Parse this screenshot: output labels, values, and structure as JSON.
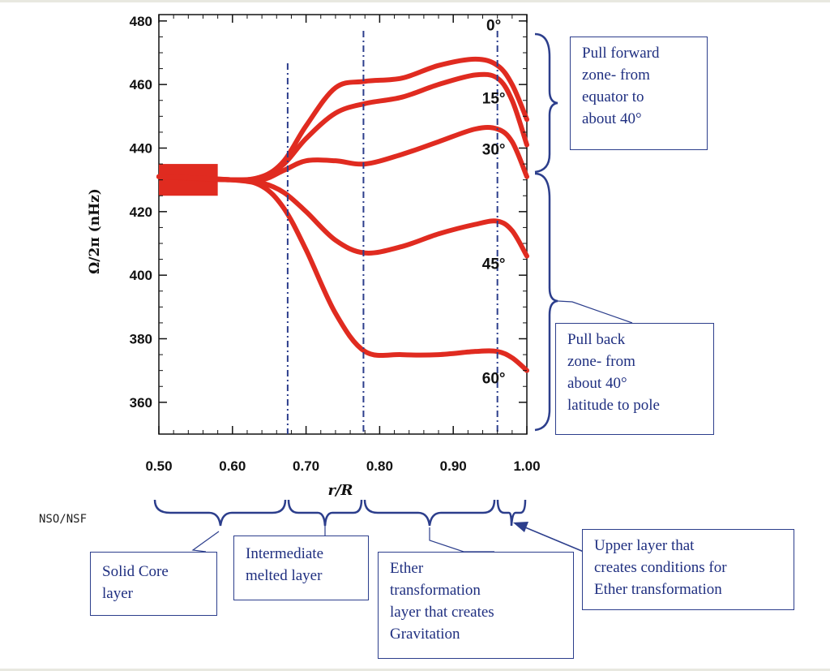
{
  "chart_data": {
    "type": "line",
    "xlabel": "r/R",
    "ylabel": "Ω/2π (nHz)",
    "xlim": [
      0.5,
      1.0
    ],
    "ylim": [
      350,
      482
    ],
    "x_ticks": [
      0.5,
      0.6,
      0.7,
      0.8,
      0.9,
      1.0
    ],
    "x_tick_labels": [
      "0.50",
      "0.60",
      "0.70",
      "0.80",
      "0.90",
      "1.00"
    ],
    "y_ticks": [
      360,
      380,
      400,
      420,
      440,
      460,
      480
    ],
    "y_tick_labels": [
      "360",
      "380",
      "400",
      "420",
      "440",
      "460",
      "480"
    ],
    "grid": false,
    "series": [
      {
        "name": "0°",
        "x": [
          0.5,
          0.6,
          0.64,
          0.67,
          0.7,
          0.74,
          0.78,
          0.83,
          0.88,
          0.93,
          0.96,
          0.98,
          1.0
        ],
        "y": [
          431,
          430,
          431,
          436,
          447,
          459,
          461,
          462,
          466,
          468,
          466,
          460,
          449
        ]
      },
      {
        "name": "",
        "x": [
          0.5,
          0.6,
          0.64,
          0.67,
          0.7,
          0.74,
          0.78,
          0.83,
          0.88,
          0.93,
          0.96,
          0.98,
          1.0
        ],
        "y": [
          431,
          430,
          431,
          435,
          443,
          451,
          454,
          456,
          460,
          463,
          462,
          455,
          441
        ]
      },
      {
        "name": "15°",
        "x": [
          0.5,
          0.6,
          0.64,
          0.67,
          0.7,
          0.74,
          0.78,
          0.83,
          0.88,
          0.93,
          0.96,
          0.98,
          1.0
        ],
        "y": [
          431,
          430,
          430,
          433,
          436,
          436,
          435,
          438,
          442,
          446,
          446,
          442,
          431
        ]
      },
      {
        "name": "30°",
        "x": [
          0.5,
          0.6,
          0.64,
          0.67,
          0.7,
          0.74,
          0.78,
          0.83,
          0.88,
          0.93,
          0.96,
          0.98,
          1.0
        ],
        "y": [
          431,
          430,
          429,
          426,
          420,
          411,
          407,
          409,
          413,
          416,
          417,
          414,
          406
        ]
      },
      {
        "name": "45°",
        "x": [
          0.5,
          0.6,
          0.64,
          0.67,
          0.7,
          0.74,
          0.78,
          0.83,
          0.88,
          0.93,
          0.96,
          0.98,
          1.0
        ],
        "y": [
          431,
          430,
          428,
          421,
          408,
          388,
          376,
          375,
          375,
          376,
          376,
          374,
          370
        ]
      }
    ],
    "annotations": [
      {
        "text": "0°",
        "x": 0.955,
        "y": 477
      },
      {
        "text": "15°",
        "x": 0.955,
        "y": 454
      },
      {
        "text": "30°",
        "x": 0.955,
        "y": 438
      },
      {
        "text": "45°",
        "x": 0.955,
        "y": 402
      },
      {
        "text": "60°",
        "x": 0.955,
        "y": 366
      }
    ],
    "dashed_vlines": [
      0.675,
      0.778,
      0.96
    ]
  },
  "credit": "NSO/NSF",
  "callouts": {
    "pull_forward": "Pull forward\nzone- from\nequator to\nabout 40°",
    "pull_back": "Pull back\nzone- from\nabout 40°\nlatitude to pole",
    "solid_core": "Solid Core\nlayer",
    "intermediate": "Intermediate\nmelted layer",
    "ether": "Ether\ntransformation\nlayer that creates\nGravitation",
    "upper": "Upper layer that\ncreates conditions for\nEther transformation"
  },
  "colors": {
    "curve": "#e02b20",
    "callout": "#2c3e8c",
    "axis": "#111111"
  }
}
